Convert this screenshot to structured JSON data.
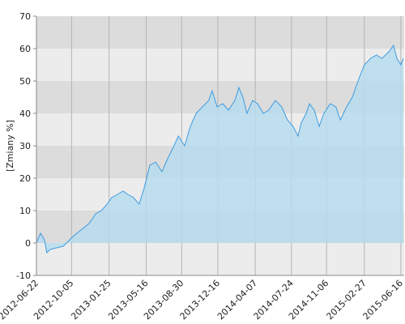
{
  "chart_data": {
    "type": "area",
    "y_label": "[Zmiany %]",
    "x": [
      "2012-06-22",
      "2012-07-04",
      "2012-07-16",
      "2012-07-23",
      "2012-08-02",
      "2012-08-21",
      "2012-09-10",
      "2012-09-20",
      "2012-10-09",
      "2012-11-02",
      "2012-11-26",
      "2012-12-16",
      "2013-01-02",
      "2013-01-19",
      "2013-02-02",
      "2013-02-19",
      "2013-03-08",
      "2013-03-22",
      "2013-04-08",
      "2013-04-25",
      "2013-05-10",
      "2013-05-27",
      "2013-06-13",
      "2013-07-02",
      "2013-07-19",
      "2013-08-07",
      "2013-08-20",
      "2013-09-08",
      "2013-09-25",
      "2013-10-12",
      "2013-10-31",
      "2013-11-19",
      "2013-11-29",
      "2013-12-14",
      "2013-12-31",
      "2014-01-17",
      "2014-02-05",
      "2014-02-17",
      "2014-03-01",
      "2014-03-13",
      "2014-03-30",
      "2014-04-14",
      "2014-05-01",
      "2014-05-17",
      "2014-06-06",
      "2014-06-25",
      "2014-07-12",
      "2014-07-29",
      "2014-08-13",
      "2014-08-22",
      "2014-09-06",
      "2014-09-16",
      "2014-09-30",
      "2014-10-15",
      "2014-10-29",
      "2014-11-17",
      "2014-12-04",
      "2014-12-17",
      "2015-01-05",
      "2015-01-22",
      "2015-02-08",
      "2015-02-27",
      "2015-03-18",
      "2015-04-04",
      "2015-04-21",
      "2015-05-11",
      "2015-05-25",
      "2015-06-04",
      "2015-06-16",
      "2015-06-23"
    ],
    "values": [
      0,
      3,
      1,
      -3,
      -2,
      -1.5,
      -1,
      0,
      2,
      4,
      6,
      9,
      10,
      12,
      14,
      15,
      16,
      15,
      14,
      12,
      17,
      24,
      25,
      22,
      26,
      30,
      33,
      30,
      36,
      40,
      42,
      44,
      47,
      42,
      43,
      41,
      44,
      48,
      45,
      40,
      44,
      43,
      40,
      41,
      44,
      42,
      38,
      36,
      33,
      37,
      40,
      43,
      41,
      36,
      40,
      43,
      42,
      38,
      42,
      45,
      50,
      55,
      57,
      58,
      57,
      59,
      61,
      57,
      55,
      57
    ],
    "color": "#3d9be0",
    "fill": "#b5dcef",
    "xlim": [
      "2012-06-22",
      "2015-06-26"
    ],
    "xticks": [
      "2012-06-22",
      "2012-10-05",
      "2013-01-25",
      "2013-05-16",
      "2013-08-30",
      "2013-12-16",
      "2014-04-07",
      "2014-07-24",
      "2014-11-06",
      "2015-02-27",
      "2015-06-16"
    ],
    "ylim": [
      -10,
      70
    ],
    "yticks": [
      -10,
      0,
      10,
      20,
      30,
      40,
      50,
      60,
      70
    ],
    "grid": true
  }
}
